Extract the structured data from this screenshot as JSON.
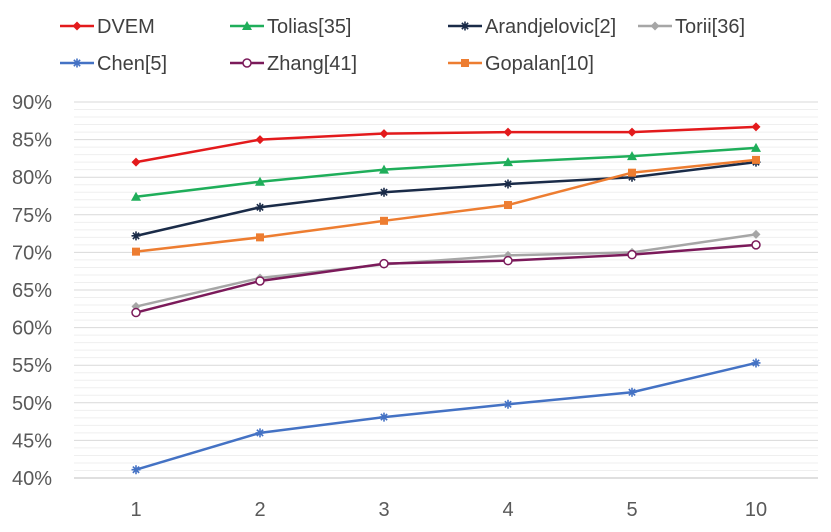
{
  "chart_data": {
    "type": "line",
    "title": "",
    "xlabel": "",
    "ylabel": "",
    "categories": [
      "1",
      "2",
      "3",
      "4",
      "5",
      "10"
    ],
    "ylim": [
      40,
      90
    ],
    "ytick_step": 5,
    "ytick_labels": [
      "40%",
      "45%",
      "50%",
      "55%",
      "60%",
      "65%",
      "70%",
      "75%",
      "80%",
      "85%",
      "90%"
    ],
    "grid": true,
    "legend_position": "top",
    "series": [
      {
        "name": "DVEM",
        "color": "#e31a1c",
        "marker": "diamond",
        "values": [
          82.0,
          85.0,
          85.8,
          86.0,
          86.0,
          86.7
        ]
      },
      {
        "name": "Tolias[35]",
        "color": "#1fae5a",
        "marker": "triangle",
        "values": [
          77.4,
          79.4,
          81.0,
          82.0,
          82.8,
          83.9
        ]
      },
      {
        "name": "Arandjelovic[2]",
        "color": "#1a2b48",
        "marker": "star",
        "values": [
          72.2,
          76.0,
          78.0,
          79.1,
          80.0,
          82.0
        ]
      },
      {
        "name": "Torii[36]",
        "color": "#a6a6a6",
        "marker": "diamond",
        "values": [
          62.8,
          66.6,
          68.4,
          69.6,
          70.0,
          72.4
        ]
      },
      {
        "name": "Chen[5]",
        "color": "#4472c4",
        "marker": "star",
        "values": [
          41.1,
          46.0,
          48.1,
          49.8,
          51.4,
          55.3
        ]
      },
      {
        "name": "Zhang[41]",
        "color": "#7b1a5a",
        "marker": "circle-open",
        "values": [
          62.0,
          66.2,
          68.5,
          68.9,
          69.7,
          71.0
        ]
      },
      {
        "name": "Gopalan[10]",
        "color": "#ed7d31",
        "marker": "square",
        "values": [
          70.1,
          72.0,
          74.2,
          76.3,
          80.6,
          82.3
        ]
      }
    ]
  }
}
